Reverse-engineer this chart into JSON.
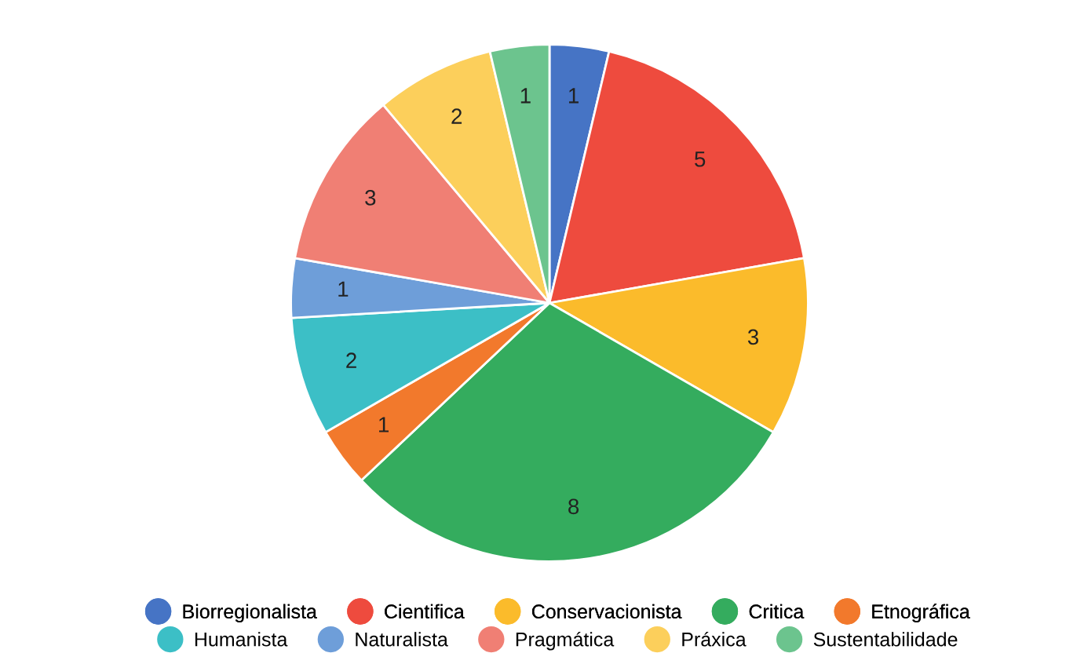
{
  "chart_data": {
    "type": "pie",
    "categories": [
      "Biorregionalista",
      "Cientifica",
      "Conservacionista",
      "Critica",
      "Etnográfica",
      "Humanista",
      "Naturalista",
      "Pragmática",
      "Práxica",
      "Sustentabilidade"
    ],
    "values": [
      1,
      5,
      3,
      8,
      1,
      2,
      1,
      3,
      2,
      1
    ],
    "colors": [
      "#4674c5",
      "#ee4b3e",
      "#fbbb2b",
      "#34ac5e",
      "#f2792c",
      "#3cbfc6",
      "#6e9ed9",
      "#f07f74",
      "#fccf5b",
      "#6cc48e"
    ],
    "data_labels": true,
    "legend": "bottom"
  }
}
